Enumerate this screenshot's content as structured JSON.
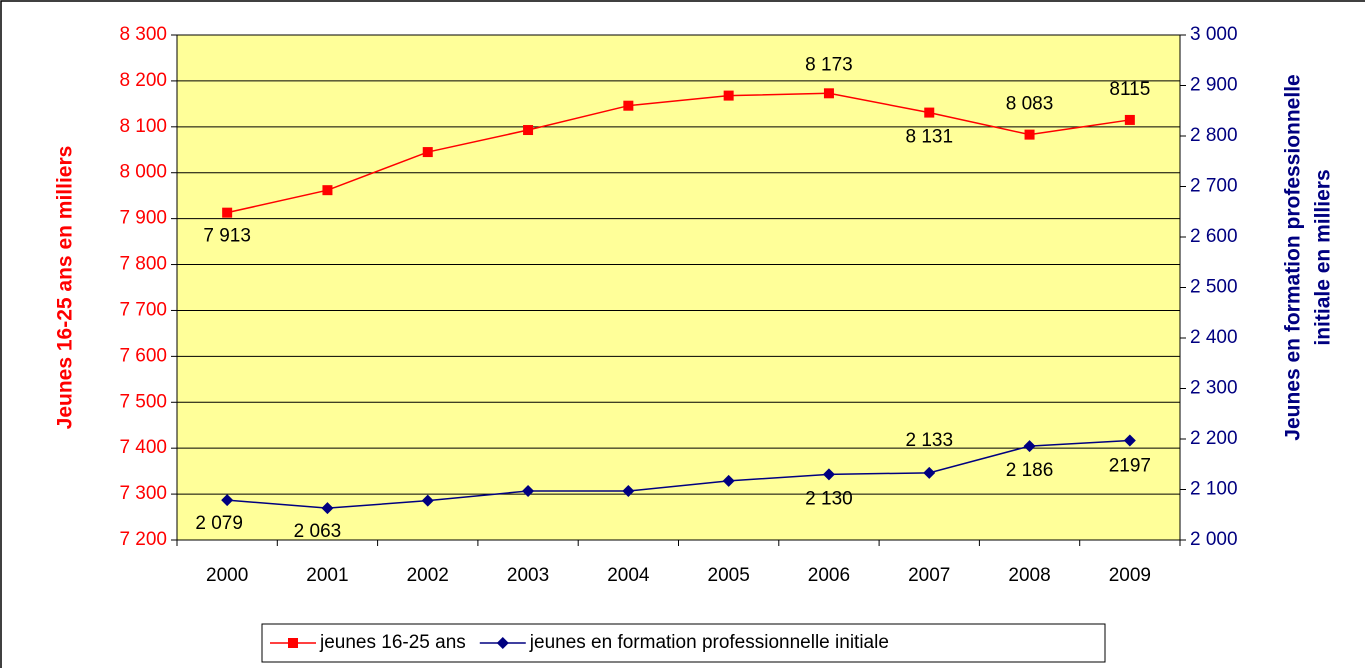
{
  "chart_data": {
    "type": "line",
    "categories": [
      "2000",
      "2001",
      "2002",
      "2003",
      "2004",
      "2005",
      "2006",
      "2007",
      "2008",
      "2009"
    ],
    "series": [
      {
        "name": "jeunes 16-25 ans",
        "color": "#ff0000",
        "marker": "square",
        "values": [
          7913,
          7962,
          8045,
          8093,
          8146,
          8168,
          8173,
          8131,
          8083,
          8115
        ],
        "value_labels": [
          "7 913",
          null,
          null,
          null,
          null,
          null,
          "8 173",
          "8 131",
          "8 083",
          "8115"
        ]
      },
      {
        "name": "jeunes en formation professionnelle initiale",
        "color": "#000080",
        "marker": "diamond",
        "axis": "y2",
        "values": [
          2079,
          2063,
          2078,
          2097,
          2097,
          2117,
          2130,
          2133,
          2186,
          2197
        ],
        "value_labels": [
          "2 079",
          "2 063",
          null,
          null,
          null,
          null,
          "2 130",
          "2 133",
          "2 186",
          "2197"
        ]
      }
    ],
    "ylabel": "Jeunes 16-25 ans en milliers",
    "y2label": [
      "Jeunes en formation professionnelle",
      "initiale en milliers"
    ],
    "ylim": [
      7200,
      8300
    ],
    "yticks": [
      {
        "value": 7200,
        "label": "7 200"
      },
      {
        "value": 7300,
        "label": "7 300"
      },
      {
        "value": 7400,
        "label": "7 400"
      },
      {
        "value": 7500,
        "label": "7 500"
      },
      {
        "value": 7600,
        "label": "7 600"
      },
      {
        "value": 7700,
        "label": "7 700"
      },
      {
        "value": 7800,
        "label": "7 800"
      },
      {
        "value": 7900,
        "label": "7 900"
      },
      {
        "value": 8000,
        "label": "8 000"
      },
      {
        "value": 8100,
        "label": "8 100"
      },
      {
        "value": 8200,
        "label": "8 200"
      },
      {
        "value": 8300,
        "label": "8 300"
      }
    ],
    "y2lim": [
      2000,
      3000
    ],
    "y2ticks": [
      {
        "value": 2000,
        "label": "2 000"
      },
      {
        "value": 2100,
        "label": "2 100"
      },
      {
        "value": 2200,
        "label": "2 200"
      },
      {
        "value": 2300,
        "label": "2 300"
      },
      {
        "value": 2400,
        "label": "2 400"
      },
      {
        "value": 2500,
        "label": "2 500"
      },
      {
        "value": 2600,
        "label": "2 600"
      },
      {
        "value": 2700,
        "label": "2 700"
      },
      {
        "value": 2800,
        "label": "2 800"
      },
      {
        "value": 2900,
        "label": "2 900"
      },
      {
        "value": 3000,
        "label": "3 000"
      }
    ],
    "grid": true,
    "plot_background": "#ffff99",
    "legend": "bottom"
  }
}
